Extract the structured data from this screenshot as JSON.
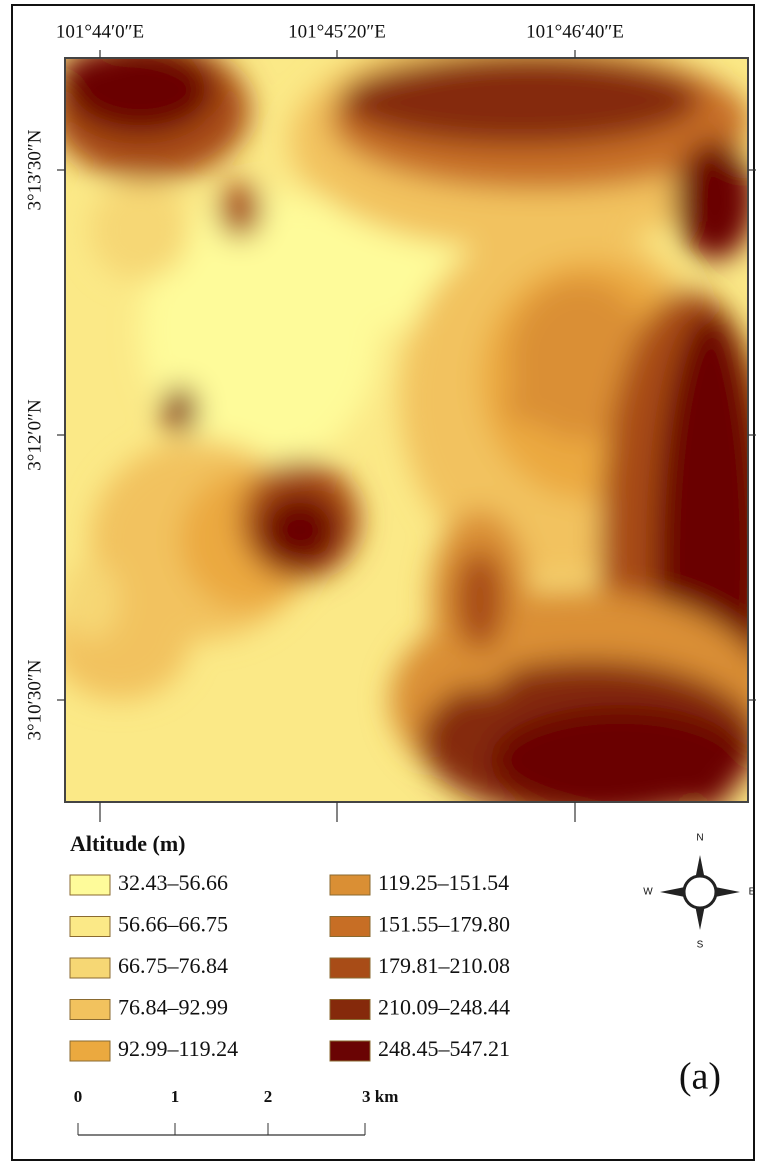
{
  "map": {
    "top_labels": [
      "101°44′0″E",
      "101°45′20″E",
      "101°46′40″E"
    ],
    "left_labels": [
      "3°13′30″N",
      "3°12′0″N",
      "3°10′30″N"
    ],
    "legend": {
      "title": "Altitude (m)",
      "items": [
        {
          "label": "32.43–56.66",
          "color": "#fefb9a"
        },
        {
          "label": "56.66–66.75",
          "color": "#fbe987"
        },
        {
          "label": "66.75–76.84",
          "color": "#f6d774"
        },
        {
          "label": "76.84–92.99",
          "color": "#f2c25e"
        },
        {
          "label": "92.99–119.24",
          "color": "#eba93f"
        },
        {
          "label": "119.25–151.54",
          "color": "#da8f34"
        },
        {
          "label": "151.55–179.80",
          "color": "#c76e25"
        },
        {
          "label": "179.81–210.08",
          "color": "#a84c17"
        },
        {
          "label": "210.09–248.44",
          "color": "#85290b"
        },
        {
          "label": "248.45–547.21",
          "color": "#6a0404"
        }
      ]
    },
    "scale_labels": [
      "0",
      "1",
      "2",
      "3 km"
    ],
    "compass": {
      "n": "N",
      "s": "S",
      "e": "E",
      "w": "W"
    },
    "panel_label": "(a)"
  }
}
